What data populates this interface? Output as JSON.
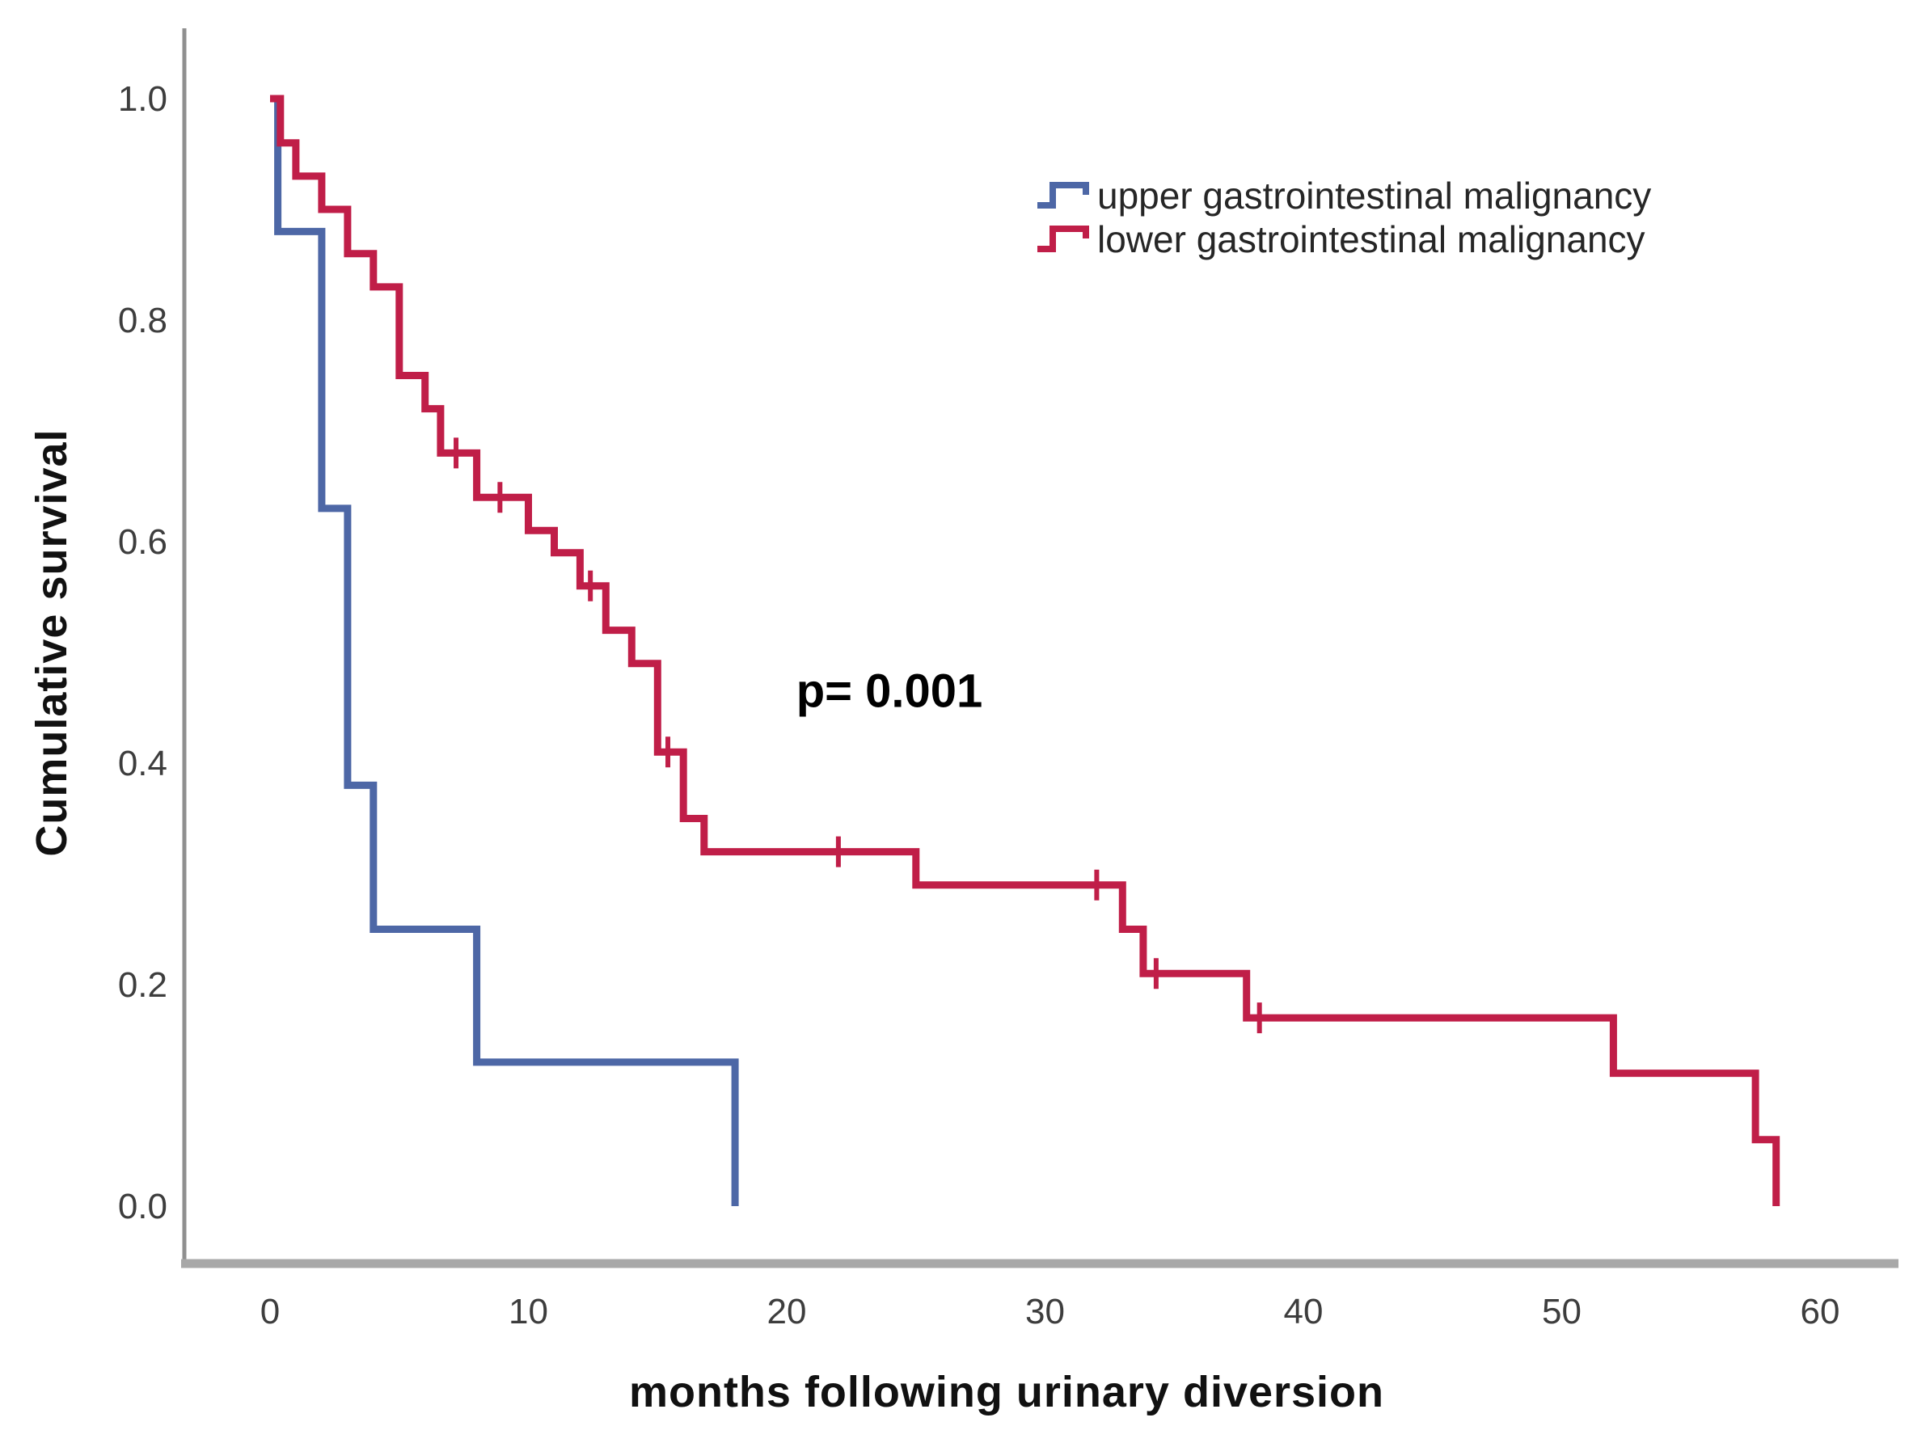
{
  "figure": {
    "y_axis_title": "Cumulative survival",
    "x_axis_title": "months following urinary diversion",
    "p_value_label": "p= 0.001"
  },
  "legend": {
    "items": [
      {
        "label": "upper gastrointestinal malignancy",
        "color": "#4d67a6"
      },
      {
        "label": "lower gastrointestinal malignancy",
        "color": "#c01e48"
      }
    ]
  },
  "chart_data": {
    "type": "line",
    "subtype": "kaplan-meier-step",
    "title": "",
    "xlabel": "months following urinary diversion",
    "ylabel": "Cumulative survival",
    "xlim": [
      -3,
      63
    ],
    "ylim": [
      0.0,
      1.0
    ],
    "x_ticks": [
      0,
      10,
      20,
      30,
      40,
      50,
      60
    ],
    "x_tick_labels": [
      "0",
      "10",
      "20",
      "30",
      "40",
      "50",
      "60"
    ],
    "y_ticks": [
      0.0,
      0.2,
      0.4,
      0.6,
      0.8,
      1.0
    ],
    "y_tick_labels": [
      "0.0",
      "0.2",
      "0.4",
      "0.6",
      "0.8",
      "1.0"
    ],
    "grid": false,
    "legend_position": "top-right",
    "annotations": [
      {
        "text": "p= 0.001",
        "x": 22.5,
        "y": 0.465
      }
    ],
    "series": [
      {
        "name": "upper gastrointestinal malignancy",
        "color": "#4d67a6",
        "steps": [
          [
            0,
            1.0
          ],
          [
            0.3,
            0.88
          ],
          [
            2,
            0.63
          ],
          [
            3,
            0.38
          ],
          [
            4,
            0.25
          ],
          [
            8,
            0.13
          ],
          [
            18,
            0.0
          ]
        ],
        "censor_marks": []
      },
      {
        "name": "lower gastrointestinal malignancy",
        "color": "#c01e48",
        "steps": [
          [
            0,
            1.0
          ],
          [
            0.4,
            0.96
          ],
          [
            1,
            0.93
          ],
          [
            2,
            0.9
          ],
          [
            3,
            0.86
          ],
          [
            4,
            0.83
          ],
          [
            5,
            0.75
          ],
          [
            6,
            0.72
          ],
          [
            6.6,
            0.68
          ],
          [
            8,
            0.64
          ],
          [
            10,
            0.61
          ],
          [
            11,
            0.59
          ],
          [
            12,
            0.56
          ],
          [
            13,
            0.52
          ],
          [
            14,
            0.49
          ],
          [
            15,
            0.41
          ],
          [
            16,
            0.35
          ],
          [
            16.8,
            0.32
          ],
          [
            25,
            0.29
          ],
          [
            33,
            0.25
          ],
          [
            33.8,
            0.21
          ],
          [
            37.8,
            0.17
          ],
          [
            52,
            0.12
          ],
          [
            57.5,
            0.06
          ],
          [
            58.3,
            0.0
          ]
        ],
        "censor_marks": [
          [
            7.2,
            0.68
          ],
          [
            8.9,
            0.64
          ],
          [
            12.4,
            0.56
          ],
          [
            15.4,
            0.41
          ],
          [
            22,
            0.32
          ],
          [
            32,
            0.29
          ],
          [
            34.3,
            0.21
          ],
          [
            38.3,
            0.17
          ]
        ]
      }
    ]
  }
}
